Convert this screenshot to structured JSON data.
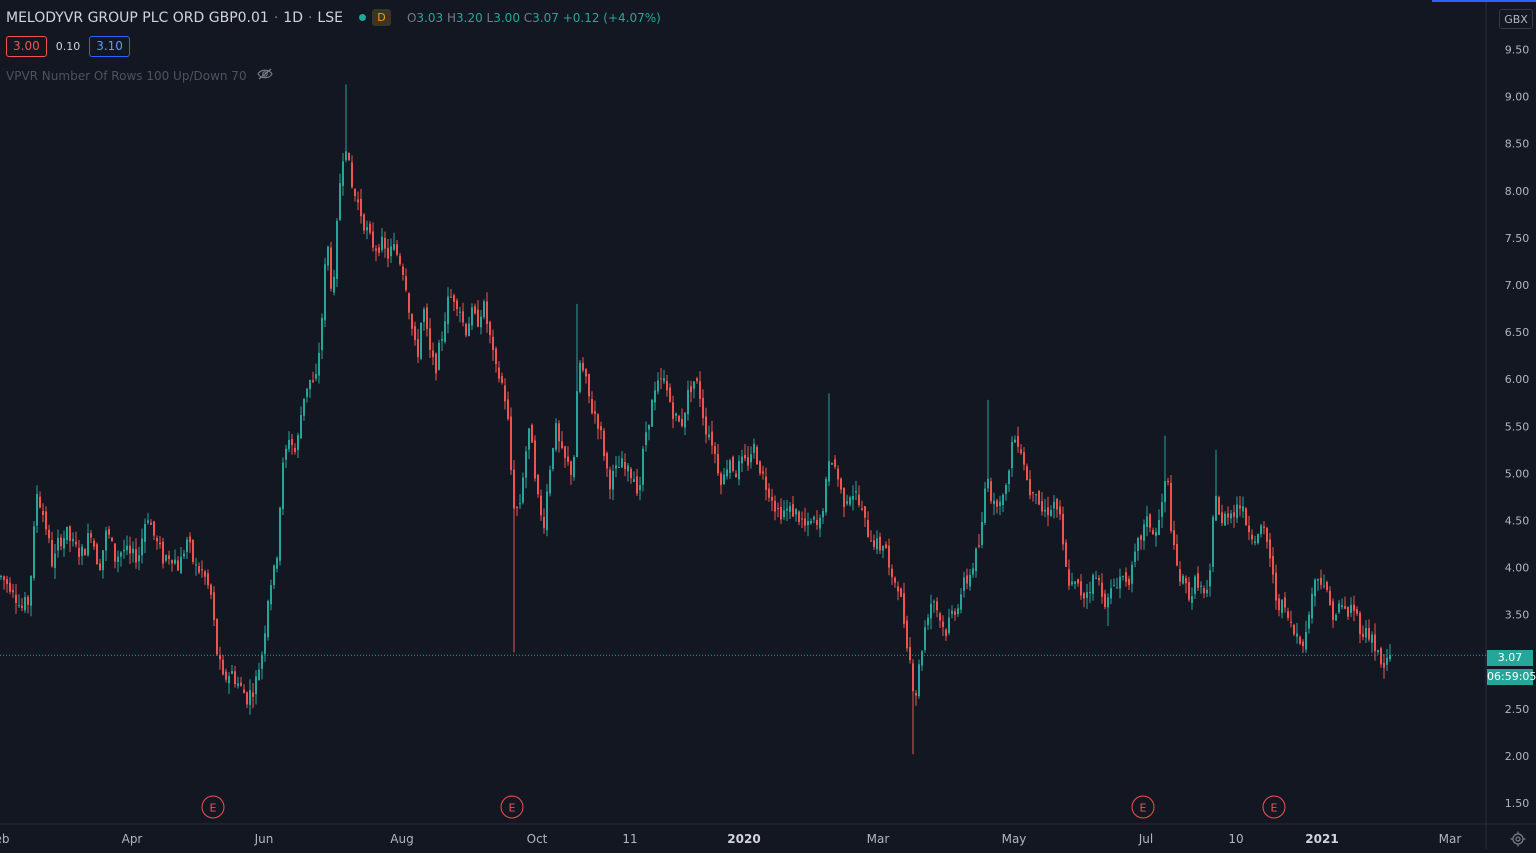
{
  "header": {
    "symbol_name": "MELODYVR GROUP PLC ORD GBP0.01",
    "interval": "1D",
    "exchange": "LSE",
    "badge": "D",
    "ohlc": {
      "o_label": "O",
      "o": "3.03",
      "h_label": "H",
      "h": "3.20",
      "l_label": "L",
      "l": "3.00",
      "c_label": "C",
      "c": "3.07",
      "change": "+0.12 (+4.07%)"
    },
    "bid": "3.00",
    "spread": "0.10",
    "ask": "3.10",
    "indicator": "VPVR Number Of Rows 100 Up/Down 70",
    "currency": "GBX"
  },
  "price_axis": {
    "last_price_label": "3.07",
    "countdown": "06:59:05"
  },
  "colors": {
    "background": "#131722",
    "up": "#26a69a",
    "down": "#ef5350",
    "text": "#d1d4dc",
    "axis_text": "#b2b5be"
  },
  "icons": [
    "eye-hidden-icon",
    "gear-icon"
  ],
  "chart_data": {
    "type": "candlestick",
    "title": "MELODYVR GROUP PLC ORD GBP0.01",
    "ylim": [
      1.3,
      9.7
    ],
    "y_ticks": [
      9.5,
      9.0,
      8.5,
      8.0,
      7.5,
      7.0,
      6.5,
      6.0,
      5.5,
      5.0,
      4.5,
      4.0,
      3.5,
      3.0,
      2.5,
      2.0,
      1.5
    ],
    "x_tick_labels": [
      "eb",
      "Apr",
      "Jun",
      "Aug",
      "Oct",
      "11",
      "2020",
      "Mar",
      "May",
      "Jul",
      "10",
      "2021",
      "Mar"
    ],
    "bold_x_ticks": [
      "2020",
      "2021"
    ],
    "last_price": 3.07,
    "earnings_markers": [
      "E",
      "E",
      "E",
      "E"
    ],
    "series": [
      {
        "values": [
          [
            0,
            3.9
          ],
          [
            5,
            3.85
          ],
          [
            12,
            3.8
          ],
          [
            20,
            3.55
          ],
          [
            28,
            3.65
          ],
          [
            36,
            4.8
          ],
          [
            44,
            4.5
          ],
          [
            52,
            4.0
          ],
          [
            58,
            4.3
          ],
          [
            66,
            4.35
          ],
          [
            74,
            4.2
          ],
          [
            82,
            4.15
          ],
          [
            90,
            4.4
          ],
          [
            98,
            4.0
          ],
          [
            106,
            4.4
          ],
          [
            114,
            4.1
          ],
          [
            122,
            4.2
          ],
          [
            130,
            4.1
          ],
          [
            138,
            4.15
          ],
          [
            146,
            4.6
          ],
          [
            154,
            4.3
          ],
          [
            162,
            4.1
          ],
          [
            170,
            4.15
          ],
          [
            178,
            4.0
          ],
          [
            186,
            4.3
          ],
          [
            194,
            4.0
          ],
          [
            202,
            3.95
          ],
          [
            210,
            3.7
          ],
          [
            216,
            3.1
          ],
          [
            222,
            2.8
          ],
          [
            230,
            2.9
          ],
          [
            238,
            2.75
          ],
          [
            246,
            2.62
          ],
          [
            254,
            2.75
          ],
          [
            262,
            3.15
          ],
          [
            268,
            3.8
          ],
          [
            275,
            4.0
          ],
          [
            281,
            5.0
          ],
          [
            288,
            5.4
          ],
          [
            295,
            5.2
          ],
          [
            302,
            5.8
          ],
          [
            308,
            6.0
          ],
          [
            314,
            5.9
          ],
          [
            320,
            6.5
          ],
          [
            326,
            7.5
          ],
          [
            332,
            6.8
          ],
          [
            338,
            8.0
          ],
          [
            344,
            8.6
          ],
          [
            350,
            8.05
          ],
          [
            356,
            7.9
          ],
          [
            362,
            7.7
          ],
          [
            368,
            7.5
          ],
          [
            374,
            7.4
          ],
          [
            380,
            7.45
          ],
          [
            386,
            7.3
          ],
          [
            392,
            7.4
          ],
          [
            398,
            7.3
          ],
          [
            404,
            7.1
          ],
          [
            410,
            6.6
          ],
          [
            416,
            6.2
          ],
          [
            422,
            6.8
          ],
          [
            428,
            6.3
          ],
          [
            434,
            6.1
          ],
          [
            440,
            6.4
          ],
          [
            446,
            6.8
          ],
          [
            452,
            6.9
          ],
          [
            458,
            6.8
          ],
          [
            464,
            6.5
          ],
          [
            470,
            6.7
          ],
          [
            476,
            6.6
          ],
          [
            482,
            6.8
          ],
          [
            488,
            6.5
          ],
          [
            494,
            6.1
          ],
          [
            500,
            6.0
          ],
          [
            506,
            5.7
          ],
          [
            512,
            4.7
          ],
          [
            518,
            4.6
          ],
          [
            524,
            5.2
          ],
          [
            530,
            5.5
          ],
          [
            536,
            4.8
          ],
          [
            542,
            4.4
          ],
          [
            548,
            5.0
          ],
          [
            554,
            5.5
          ],
          [
            560,
            5.2
          ],
          [
            566,
            5.1
          ],
          [
            572,
            5.0
          ],
          [
            578,
            6.2
          ],
          [
            584,
            6.0
          ],
          [
            590,
            5.7
          ],
          [
            596,
            5.6
          ],
          [
            602,
            5.3
          ],
          [
            608,
            4.9
          ],
          [
            614,
            5.0
          ],
          [
            620,
            5.1
          ],
          [
            626,
            5.0
          ],
          [
            632,
            5.0
          ],
          [
            638,
            4.8
          ],
          [
            644,
            5.4
          ],
          [
            650,
            5.7
          ],
          [
            656,
            5.9
          ],
          [
            662,
            6.0
          ],
          [
            668,
            5.8
          ],
          [
            674,
            5.6
          ],
          [
            680,
            5.5
          ],
          [
            686,
            5.8
          ],
          [
            692,
            6.0
          ],
          [
            698,
            5.9
          ],
          [
            704,
            5.5
          ],
          [
            710,
            5.4
          ],
          [
            716,
            5.1
          ],
          [
            722,
            4.9
          ],
          [
            728,
            5.2
          ],
          [
            734,
            5.0
          ],
          [
            740,
            5.1
          ],
          [
            746,
            5.1
          ],
          [
            752,
            5.3
          ],
          [
            758,
            5.1
          ],
          [
            764,
            4.9
          ],
          [
            770,
            4.8
          ],
          [
            776,
            4.6
          ],
          [
            782,
            4.6
          ],
          [
            788,
            4.6
          ],
          [
            794,
            4.6
          ],
          [
            800,
            4.5
          ],
          [
            806,
            4.4
          ],
          [
            812,
            4.5
          ],
          [
            818,
            4.4
          ],
          [
            824,
            4.8
          ],
          [
            830,
            5.2
          ],
          [
            836,
            5.0
          ],
          [
            842,
            4.7
          ],
          [
            848,
            4.8
          ],
          [
            854,
            4.8
          ],
          [
            860,
            4.6
          ],
          [
            866,
            4.4
          ],
          [
            872,
            4.3
          ],
          [
            878,
            4.2
          ],
          [
            884,
            4.3
          ],
          [
            890,
            3.8
          ],
          [
            896,
            3.9
          ],
          [
            902,
            3.5
          ],
          [
            908,
            3.1
          ],
          [
            914,
            2.6
          ],
          [
            920,
            3.1
          ],
          [
            926,
            3.5
          ],
          [
            932,
            3.7
          ],
          [
            938,
            3.5
          ],
          [
            944,
            3.3
          ],
          [
            950,
            3.5
          ],
          [
            956,
            3.6
          ],
          [
            962,
            3.8
          ],
          [
            968,
            3.9
          ],
          [
            974,
            4.1
          ],
          [
            980,
            4.3
          ],
          [
            986,
            5.1
          ],
          [
            992,
            4.6
          ],
          [
            998,
            4.8
          ],
          [
            1004,
            4.7
          ],
          [
            1010,
            5.3
          ],
          [
            1016,
            5.4
          ],
          [
            1022,
            5.2
          ],
          [
            1028,
            4.8
          ],
          [
            1034,
            4.9
          ],
          [
            1040,
            4.6
          ],
          [
            1046,
            4.6
          ],
          [
            1052,
            4.7
          ],
          [
            1058,
            4.6
          ],
          [
            1064,
            4.0
          ],
          [
            1070,
            3.8
          ],
          [
            1076,
            3.8
          ],
          [
            1082,
            3.7
          ],
          [
            1088,
            3.8
          ],
          [
            1094,
            3.9
          ],
          [
            1100,
            3.8
          ],
          [
            1106,
            3.6
          ],
          [
            1112,
            3.8
          ],
          [
            1118,
            3.9
          ],
          [
            1124,
            3.9
          ],
          [
            1130,
            3.9
          ],
          [
            1136,
            4.2
          ],
          [
            1142,
            4.4
          ],
          [
            1148,
            4.5
          ],
          [
            1154,
            4.3
          ],
          [
            1160,
            4.6
          ],
          [
            1166,
            5.0
          ],
          [
            1172,
            4.2
          ],
          [
            1178,
            3.9
          ],
          [
            1184,
            3.8
          ],
          [
            1190,
            3.7
          ],
          [
            1196,
            3.9
          ],
          [
            1202,
            3.7
          ],
          [
            1208,
            3.7
          ],
          [
            1214,
            4.9
          ],
          [
            1220,
            4.4
          ],
          [
            1226,
            4.6
          ],
          [
            1232,
            4.6
          ],
          [
            1238,
            4.7
          ],
          [
            1244,
            4.5
          ],
          [
            1250,
            4.4
          ],
          [
            1256,
            4.3
          ],
          [
            1262,
            4.4
          ],
          [
            1268,
            4.2
          ],
          [
            1274,
            3.7
          ],
          [
            1280,
            3.6
          ],
          [
            1286,
            3.5
          ],
          [
            1292,
            3.3
          ],
          [
            1298,
            3.3
          ],
          [
            1304,
            3.2
          ],
          [
            1310,
            3.7
          ],
          [
            1316,
            3.9
          ],
          [
            1322,
            3.9
          ],
          [
            1328,
            3.6
          ],
          [
            1334,
            3.5
          ],
          [
            1340,
            3.6
          ],
          [
            1346,
            3.5
          ],
          [
            1352,
            3.6
          ],
          [
            1358,
            3.4
          ],
          [
            1364,
            3.3
          ],
          [
            1370,
            3.3
          ],
          [
            1376,
            3.1
          ],
          [
            1382,
            2.9
          ],
          [
            1388,
            3.07
          ]
        ]
      }
    ]
  }
}
